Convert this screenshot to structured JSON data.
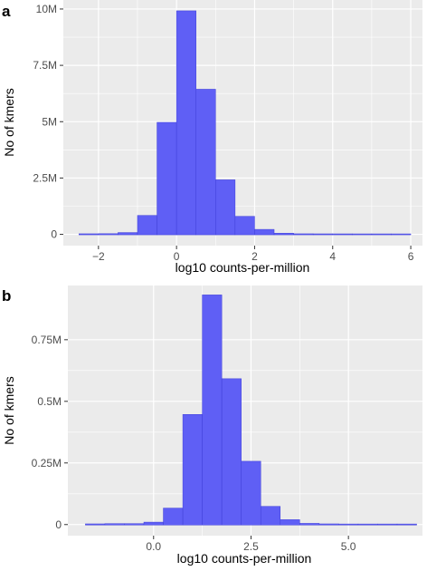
{
  "chart_data": [
    {
      "type": "bar",
      "panel_label": "a",
      "xlabel": "log10 counts-per-million",
      "ylabel": "No of kmers",
      "xlim": [
        -2.9,
        6.3
      ],
      "ylim": [
        -500000,
        10400000
      ],
      "xticks": [
        -2,
        0,
        2,
        4,
        6
      ],
      "xtick_labels": [
        "−2",
        "0",
        "2",
        "4",
        "6"
      ],
      "yticks": [
        0,
        2500000,
        5000000,
        7500000,
        10000000
      ],
      "ytick_labels": [
        "0",
        "2.5M",
        "5M",
        "7.5M",
        "10M"
      ],
      "bin_edges": [
        -2.5,
        -2.0,
        -1.5,
        -1.0,
        -0.5,
        0.0,
        0.5,
        1.0,
        1.5,
        2.0,
        2.5,
        3.0,
        3.5,
        4.0,
        4.5,
        5.0,
        5.5,
        6.0
      ],
      "values": [
        5000,
        10000,
        60000,
        820000,
        4950000,
        9900000,
        6420000,
        2400000,
        780000,
        200000,
        30000,
        5000,
        3000,
        2000,
        1000,
        1000,
        500
      ],
      "grid": true,
      "colors": {
        "bar": "#5f5ff5",
        "bar_edge": "#3f3fd8",
        "panel": "#ebebeb",
        "grid": "#ffffff"
      }
    },
    {
      "type": "bar",
      "panel_label": "b",
      "xlabel": "log10 counts-per-million",
      "ylabel": "No of kmers",
      "xlim": [
        -2.2,
        6.9
      ],
      "ylim": [
        -45000,
        970000
      ],
      "xticks": [
        0,
        2.5,
        5
      ],
      "xtick_labels": [
        "0.0",
        "2.5",
        "5.0"
      ],
      "yticks": [
        0,
        250000,
        500000,
        750000
      ],
      "ytick_labels": [
        "0",
        "0.25M",
        "0.5M",
        "0.75M"
      ],
      "bin_edges": [
        -1.75,
        -1.25,
        -0.75,
        -0.25,
        0.25,
        0.75,
        1.25,
        1.75,
        2.25,
        2.75,
        3.25,
        3.75,
        4.25,
        4.75,
        5.25,
        5.75,
        6.25,
        6.75
      ],
      "values": [
        1000,
        2000,
        2000,
        8000,
        65000,
        445000,
        930000,
        590000,
        255000,
        72000,
        18000,
        3000,
        1000,
        500,
        500,
        500,
        500
      ],
      "grid": true,
      "colors": {
        "bar": "#5f5ff5",
        "bar_edge": "#3f3fd8",
        "panel": "#ebebeb",
        "grid": "#ffffff"
      }
    }
  ]
}
